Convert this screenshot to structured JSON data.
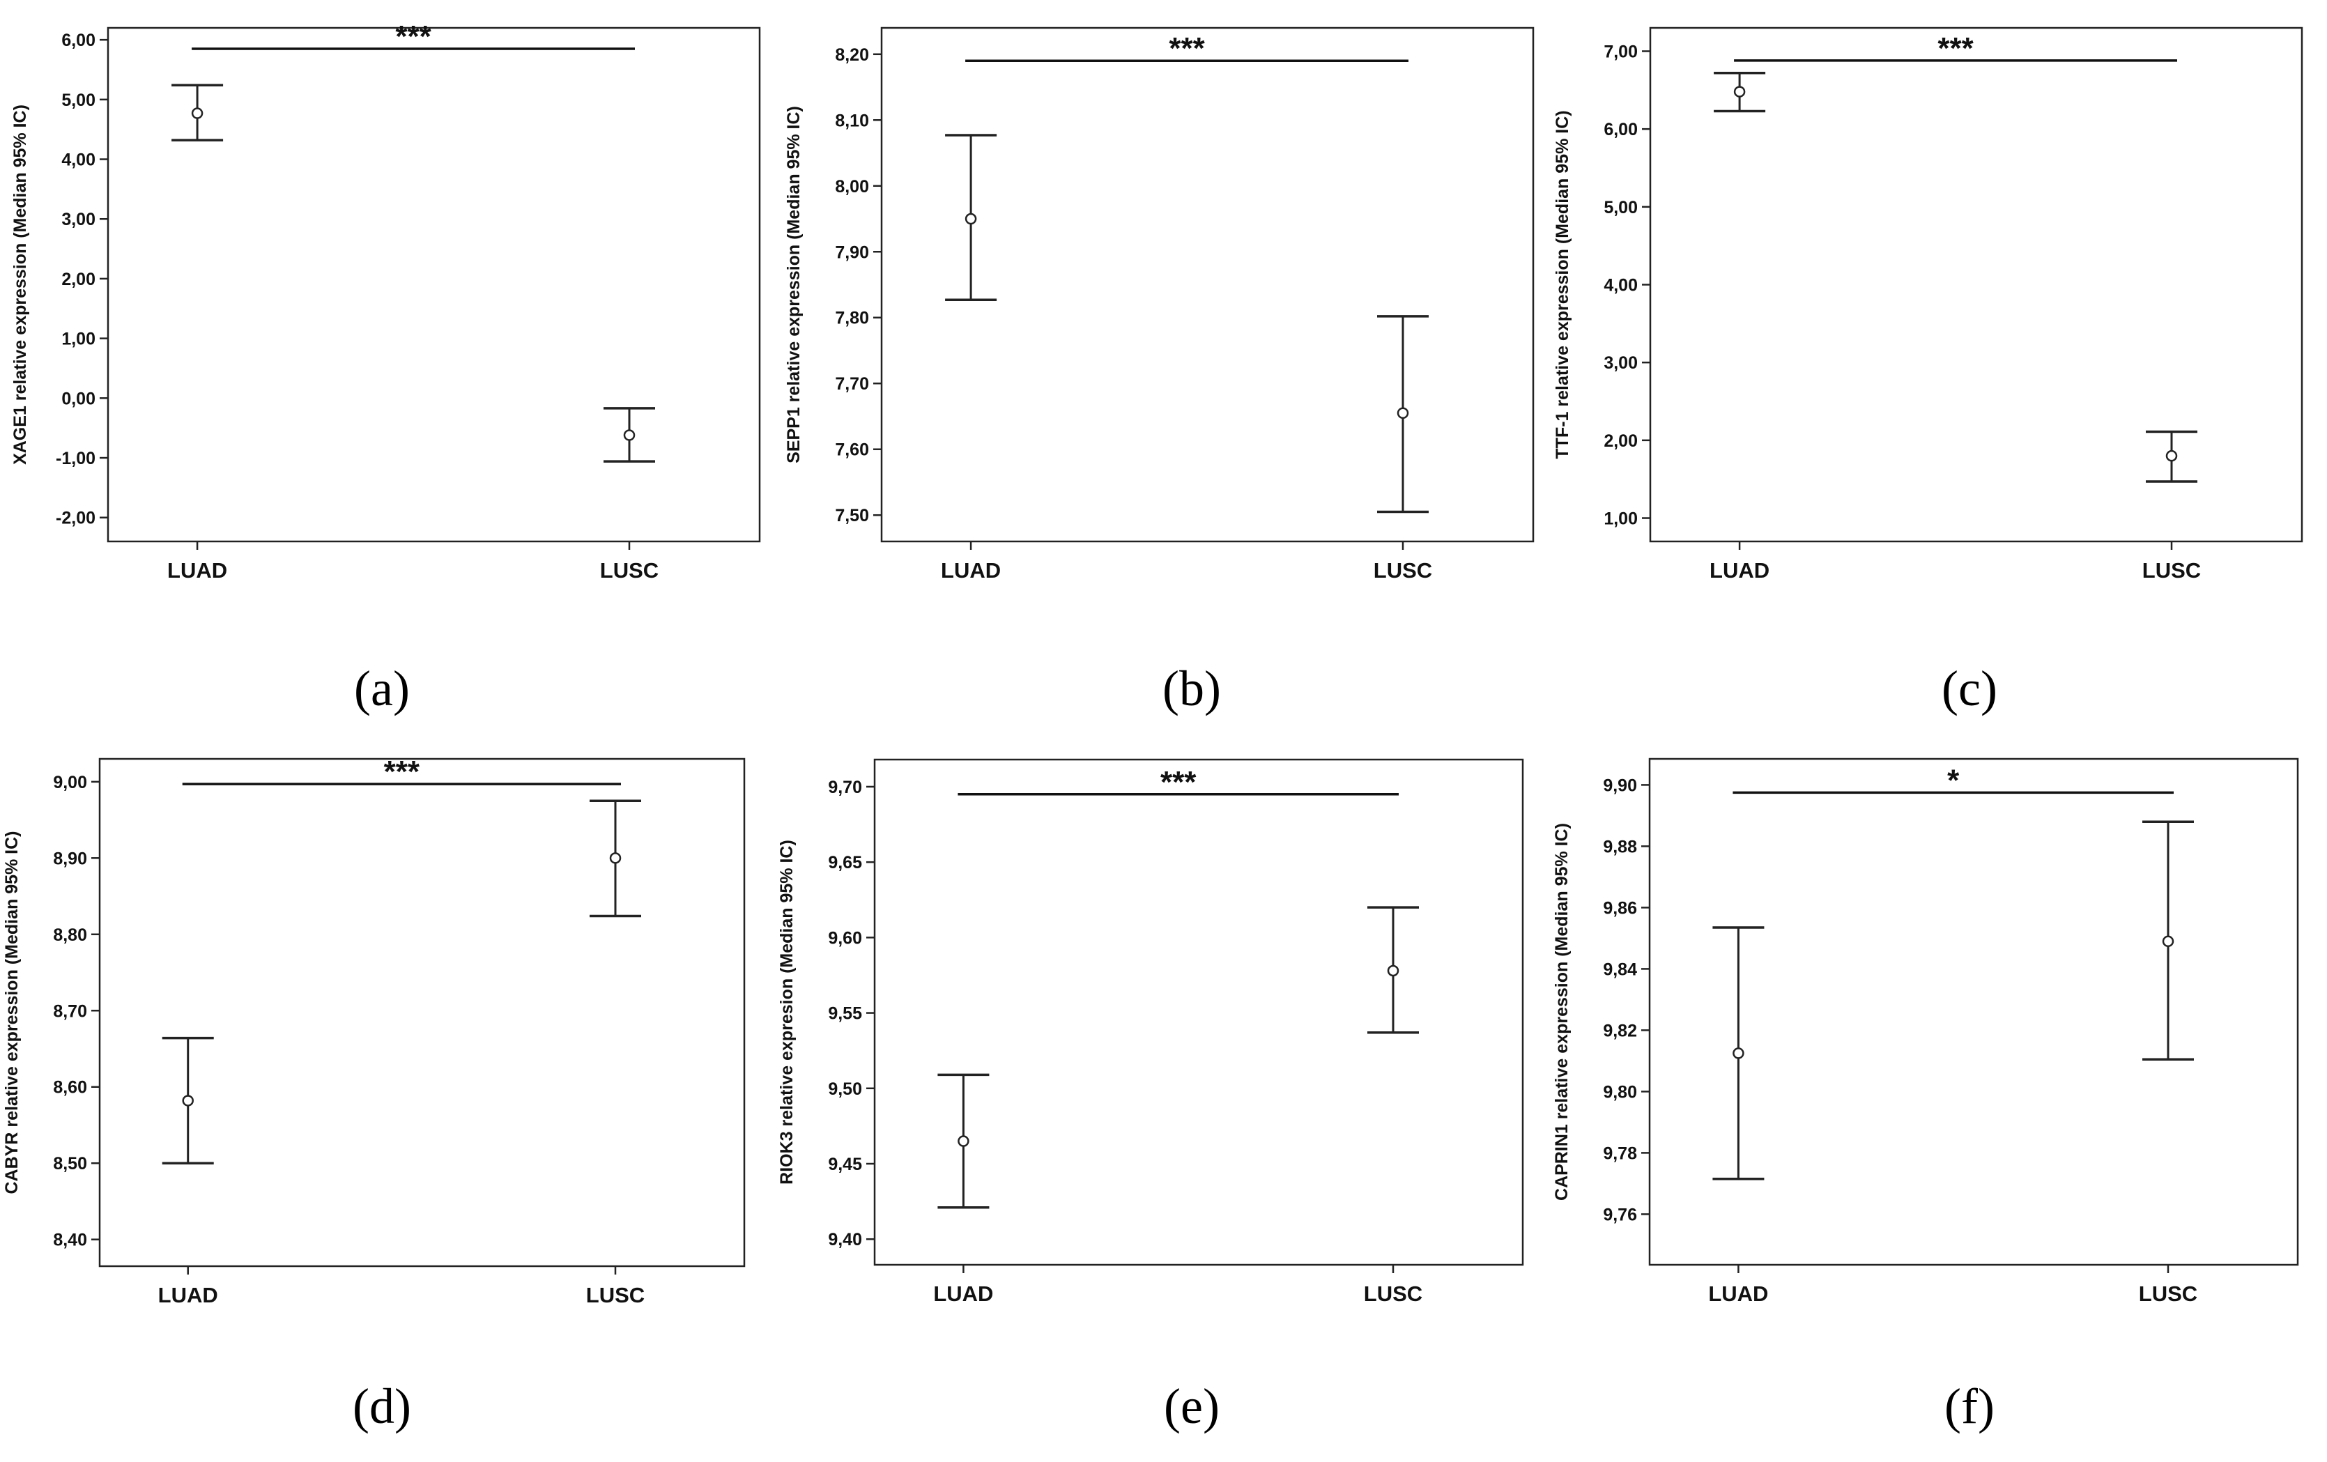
{
  "chart_data": [
    {
      "type": "errorbar",
      "panel_label": "(a)",
      "categories": [
        "LUAD",
        "LUSC"
      ],
      "ylabel": "XAGE1 relative expression (Median 95% IC)",
      "ylim": [
        -2.4,
        6.2
      ],
      "yticks": [
        "-2,00",
        "-1,00",
        "0,00",
        "1,00",
        "2,00",
        "3,00",
        "4,00",
        "5,00",
        "6,00"
      ],
      "ytick_values": [
        -2,
        -1,
        0,
        1,
        2,
        3,
        4,
        5,
        6
      ],
      "median": [
        4.77,
        -0.62
      ],
      "lower": [
        4.32,
        -1.06
      ],
      "upper": [
        5.24,
        -0.17
      ],
      "significance": "***",
      "sig_y": 5.85
    },
    {
      "type": "errorbar",
      "panel_label": "(b)",
      "categories": [
        "LUAD",
        "LUSC"
      ],
      "ylabel": "SEPP1 relative expression (Median 95% IC)",
      "ylim": [
        7.46,
        8.24
      ],
      "yticks": [
        "7,50",
        "7,60",
        "7,70",
        "7,80",
        "7,90",
        "8,00",
        "8,10",
        "8,20"
      ],
      "ytick_values": [
        7.5,
        7.6,
        7.7,
        7.8,
        7.9,
        8.0,
        8.1,
        8.2
      ],
      "median": [
        7.95,
        7.655
      ],
      "lower": [
        7.827,
        7.505
      ],
      "upper": [
        8.077,
        7.802
      ],
      "significance": "***",
      "sig_y": 8.19
    },
    {
      "type": "errorbar",
      "panel_label": "(c)",
      "categories": [
        "LUAD",
        "LUSC"
      ],
      "ylabel": "TTF-1 relative expression (Median 95% IC)",
      "ylim": [
        0.7,
        7.3
      ],
      "yticks": [
        "1,00",
        "2,00",
        "3,00",
        "4,00",
        "5,00",
        "6,00",
        "7,00"
      ],
      "ytick_values": [
        1,
        2,
        3,
        4,
        5,
        6,
        7
      ],
      "median": [
        6.48,
        1.8
      ],
      "lower": [
        6.23,
        1.47
      ],
      "upper": [
        6.72,
        2.11
      ],
      "significance": "***",
      "sig_y": 6.88
    },
    {
      "type": "errorbar",
      "panel_label": "(d)",
      "categories": [
        "LUAD",
        "LUSC"
      ],
      "ylabel": "CABYR relative expression (Median 95% IC)",
      "ylim": [
        8.365,
        9.03
      ],
      "yticks": [
        "8,40",
        "8,50",
        "8,60",
        "8,70",
        "8,80",
        "8,90",
        "9,00"
      ],
      "ytick_values": [
        8.4,
        8.5,
        8.6,
        8.7,
        8.8,
        8.9,
        9.0
      ],
      "median": [
        8.582,
        8.9
      ],
      "lower": [
        8.5,
        8.824
      ],
      "upper": [
        8.664,
        8.975
      ],
      "significance": "***",
      "sig_y": 8.997
    },
    {
      "type": "errorbar",
      "panel_label": "(e)",
      "categories": [
        "LUAD",
        "LUSC"
      ],
      "ylabel": "RIOK3 relative expresion (Median 95% IC)",
      "ylim": [
        9.383,
        9.718
      ],
      "yticks": [
        "9,40",
        "9,45",
        "9,50",
        "9,55",
        "9,60",
        "9,65",
        "9,70"
      ],
      "ytick_values": [
        9.4,
        9.45,
        9.5,
        9.55,
        9.6,
        9.65,
        9.7
      ],
      "median": [
        9.465,
        9.578
      ],
      "lower": [
        9.421,
        9.537
      ],
      "upper": [
        9.509,
        9.62
      ],
      "significance": "***",
      "sig_y": 9.695
    },
    {
      "type": "errorbar",
      "panel_label": "(f)",
      "categories": [
        "LUAD",
        "LUSC"
      ],
      "ylabel": "CAPRIN1 relative expression (Median 95% IC)",
      "ylim": [
        9.7435,
        9.9085
      ],
      "yticks": [
        "9,76",
        "9,78",
        "9,80",
        "9,82",
        "9,84",
        "9,86",
        "9,88",
        "9,90"
      ],
      "ytick_values": [
        9.76,
        9.78,
        9.8,
        9.82,
        9.84,
        9.86,
        9.88,
        9.9
      ],
      "median": [
        9.8125,
        9.849
      ],
      "lower": [
        9.7715,
        9.8105
      ],
      "upper": [
        9.8535,
        9.888
      ],
      "significance": "*",
      "sig_y": 9.8975
    }
  ]
}
